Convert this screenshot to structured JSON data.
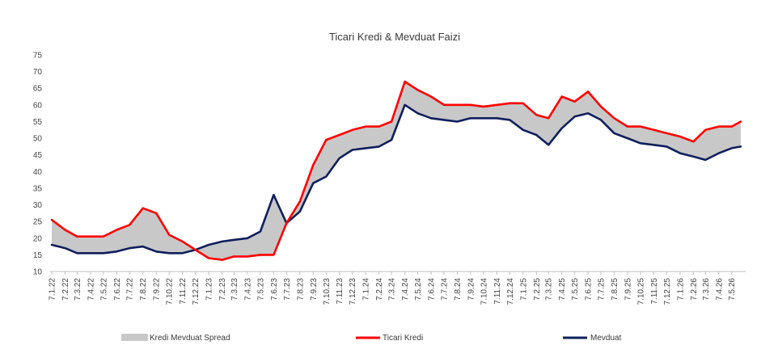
{
  "chart_data": {
    "type": "line",
    "title": "Ticari Kredi & Mevduat Faizi",
    "xlabel": "",
    "ylabel": "",
    "ylim": [
      10,
      75
    ],
    "yticks": [
      10,
      15,
      20,
      25,
      30,
      35,
      40,
      45,
      50,
      55,
      60,
      65,
      70,
      75
    ],
    "grid": false,
    "legend_position": "bottom",
    "x_tick_labels": [
      "7.1.22",
      "7.2.22",
      "7.3.22",
      "7.4.22",
      "7.5.22",
      "7.6.22",
      "7.7.22",
      "7.8.22",
      "7.9.22",
      "7.10.22",
      "7.11.22",
      "7.12.22",
      "7.1.23",
      "7.2.23",
      "7.3.23",
      "7.4.23",
      "7.5.23",
      "7.6.23",
      "7.7.23",
      "7.8.23",
      "7.9.23",
      "7.10.23",
      "7.11.23",
      "7.12.23",
      "7.1.24",
      "7.2.24",
      "7.3.24",
      "7.4.24",
      "7.5.24",
      "7.6.24",
      "7.7.24",
      "7.8.24",
      "7.9.24",
      "7.10.24",
      "7.11.24",
      "7.12.24",
      "7.1.25",
      "7.2.25",
      "7.3.25",
      "7.4.25",
      "7.5.25",
      "7.6.25",
      "7.7.25",
      "7.8.25",
      "7.9.25",
      "7.10.25",
      "7.11.25",
      "7.12.25",
      "7.1.26",
      "7.2.26",
      "7.3.26",
      "7.4.26",
      "7.5.26"
    ],
    "x_dates": [
      "2022-01-07",
      "2022-02-07",
      "2022-03-07",
      "2022-04-07",
      "2022-05-07",
      "2022-06-07",
      "2022-07-07",
      "2022-08-07",
      "2022-09-07",
      "2022-10-07",
      "2022-11-07",
      "2022-12-07",
      "2023-01-07",
      "2023-02-07",
      "2023-03-07",
      "2023-04-07",
      "2023-05-07",
      "2023-06-07",
      "2023-07-07",
      "2023-08-07",
      "2023-09-07",
      "2023-10-07",
      "2023-11-07",
      "2023-12-07",
      "2024-01-07",
      "2024-02-07",
      "2024-03-07",
      "2024-04-07",
      "2024-05-07",
      "2024-06-07",
      "2024-07-07",
      "2024-08-07",
      "2024-09-07",
      "2024-10-07",
      "2024-11-07",
      "2024-12-07",
      "2025-01-07",
      "2025-02-07",
      "2025-03-07",
      "2025-04-07",
      "2025-05-07",
      "2025-06-07",
      "2025-07-07",
      "2025-08-07",
      "2025-09-07",
      "2025-10-07",
      "2025-11-07",
      "2025-12-07",
      "2026-01-07",
      "2026-02-07",
      "2026-03-07",
      "2026-04-07",
      "2026-05-07",
      "2026-05-28"
    ],
    "series": [
      {
        "name": "Ticari Kredi",
        "color": "#ff0000",
        "values": [
          25.5,
          22.5,
          20.5,
          20.5,
          20.5,
          22.5,
          24.0,
          29.0,
          27.5,
          21.0,
          19.0,
          16.5,
          14.0,
          13.5,
          14.5,
          14.5,
          15.0,
          15.0,
          24.5,
          31.0,
          42.0,
          49.5,
          51.0,
          52.5,
          53.5,
          53.5,
          55.0,
          67.0,
          64.5,
          62.5,
          60.0,
          60.0,
          60.0,
          59.5,
          60.0,
          60.5,
          60.5,
          57.0,
          56.0,
          62.5,
          61.0,
          64.0,
          59.5,
          56.0,
          53.5,
          53.5,
          52.5,
          51.5,
          50.5,
          49.0,
          52.5,
          53.5,
          53.5,
          55.0
        ]
      },
      {
        "name": "Mevduat",
        "color": "#0f1f5c",
        "values": [
          18.0,
          17.0,
          15.5,
          15.5,
          15.5,
          16.0,
          17.0,
          17.5,
          16.0,
          15.5,
          15.5,
          16.5,
          18.0,
          19.0,
          19.5,
          20.0,
          22.0,
          33.0,
          24.5,
          28.0,
          36.5,
          38.5,
          44.0,
          46.5,
          47.0,
          47.5,
          49.5,
          60.0,
          57.5,
          56.0,
          55.5,
          55.0,
          56.0,
          56.0,
          56.0,
          55.5,
          52.5,
          51.0,
          48.0,
          53.0,
          56.5,
          57.5,
          55.5,
          51.5,
          50.0,
          48.5,
          48.0,
          47.5,
          45.5,
          44.5,
          43.5,
          45.5,
          47.0,
          47.5
        ]
      }
    ],
    "band": {
      "name": "Kredi Mevduat Spread",
      "color": "#c8c8c8",
      "upper_series": "Ticari Kredi",
      "lower_series": "Mevduat"
    }
  },
  "legend": {
    "spread_label": "Kredi Mevduat Spread",
    "kredi_label": "Ticari Kredi",
    "mevduat_label": "Mevduat"
  }
}
